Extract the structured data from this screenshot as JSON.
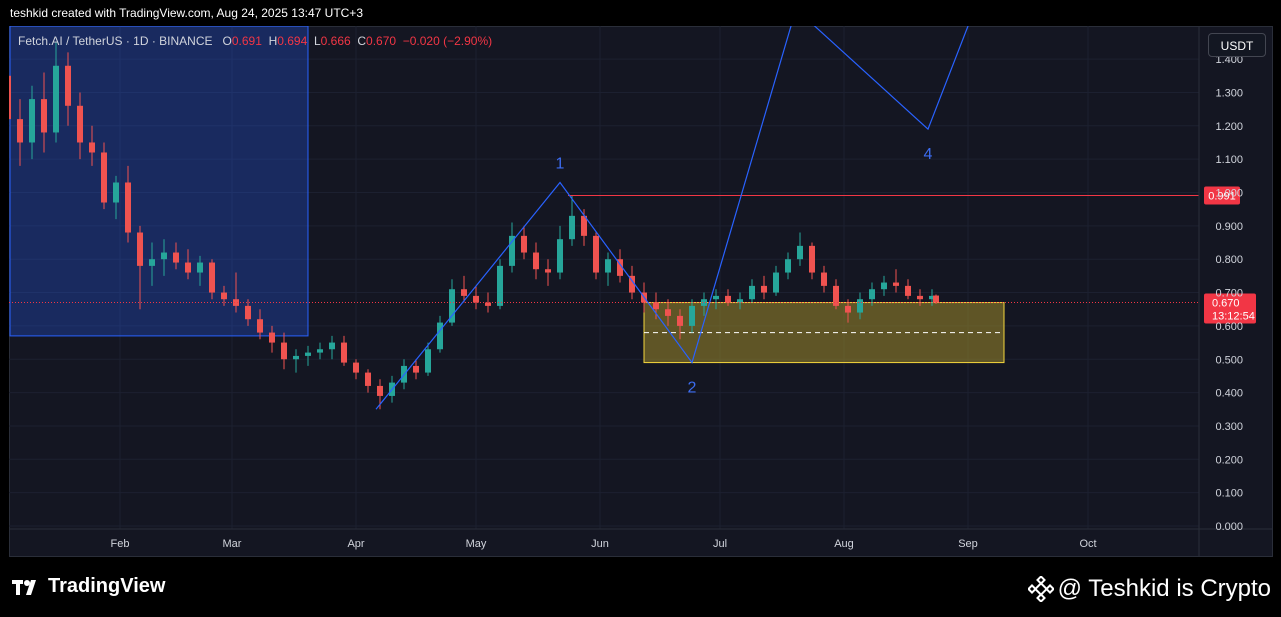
{
  "header": {
    "attribution": "teshkid created with TradingView.com, Aug 24, 2025 13:47 UTC+3"
  },
  "legend": {
    "symbol": "Fetch.AI / TetherUS · 1D · BINANCE",
    "o_label": "O",
    "o_value": "0.691",
    "h_label": "H",
    "h_value": "0.694",
    "l_label": "L",
    "l_value": "0.666",
    "c_label": "C",
    "c_value": "0.670",
    "change": "−0.020 (−2.90%)"
  },
  "currency_button": "USDT",
  "footer": {
    "brand": "TradingView",
    "watermark": "@ Teshkid is Crypto"
  },
  "colors": {
    "up": "#26a69a",
    "down": "#ef5350",
    "wave": "#2962ff",
    "resistance": "#f23645",
    "zone_fill": "#9c8b2a",
    "zone_border": "#f5d63d",
    "box": "#2962ff"
  },
  "chart_data": {
    "type": "candlestick",
    "x_ticks": [
      "Feb",
      "Mar",
      "Apr",
      "May",
      "Jun",
      "Jul",
      "Aug",
      "Sep",
      "Oct"
    ],
    "y_ticks": [
      "0.000",
      "0.100",
      "0.200",
      "0.300",
      "0.400",
      "0.500",
      "0.600",
      "0.700",
      "0.800",
      "0.900",
      "1.000",
      "1.100",
      "1.200",
      "1.300",
      "1.400"
    ],
    "ylim": [
      0,
      1.47
    ],
    "resistance_level": {
      "value": 0.991,
      "label": "0.991"
    },
    "last_price": {
      "value": 0.67,
      "label": "0.670",
      "countdown": "13:12:54"
    },
    "wave_points": [
      {
        "date": "2025-04-06",
        "price": 0.35,
        "label": ""
      },
      {
        "date": "2025-05-22",
        "price": 1.03,
        "label": "1"
      },
      {
        "date": "2025-06-24",
        "price": 0.49,
        "label": "2"
      },
      {
        "date": "2025-07-20",
        "price": 1.55,
        "label": ""
      },
      {
        "date": "2025-08-22",
        "price": 1.19,
        "label": "4"
      },
      {
        "date": "2025-09-02",
        "price": 1.53,
        "label": ""
      }
    ],
    "zones": [
      {
        "type": "box",
        "from": "2025-01-01",
        "to": "2025-03-20",
        "low": 0.57,
        "high": 1.47
      },
      {
        "type": "demand",
        "from": "2025-06-12",
        "to": "2025-09-10",
        "low": 0.49,
        "high": 0.67,
        "mid": 0.58
      }
    ],
    "series": [
      {
        "ohlc": [
          [
            "2025-01-01",
            1.3,
            1.47,
            1.22,
            1.35
          ],
          [
            "2025-01-04",
            1.35,
            1.4,
            1.18,
            1.22
          ],
          [
            "2025-01-07",
            1.22,
            1.28,
            1.08,
            1.15
          ],
          [
            "2025-01-10",
            1.15,
            1.32,
            1.1,
            1.28
          ],
          [
            "2025-01-13",
            1.28,
            1.36,
            1.12,
            1.18
          ],
          [
            "2025-01-16",
            1.18,
            1.45,
            1.15,
            1.38
          ],
          [
            "2025-01-19",
            1.38,
            1.42,
            1.2,
            1.26
          ],
          [
            "2025-01-22",
            1.26,
            1.3,
            1.1,
            1.15
          ],
          [
            "2025-01-25",
            1.15,
            1.2,
            1.08,
            1.12
          ],
          [
            "2025-01-28",
            1.12,
            1.15,
            0.95,
            0.97
          ],
          [
            "2025-01-31",
            0.97,
            1.05,
            0.92,
            1.03
          ],
          [
            "2025-02-03",
            1.03,
            1.08,
            0.85,
            0.88
          ],
          [
            "2025-02-06",
            0.88,
            0.9,
            0.65,
            0.78
          ],
          [
            "2025-02-09",
            0.78,
            0.85,
            0.72,
            0.8
          ],
          [
            "2025-02-12",
            0.8,
            0.86,
            0.75,
            0.82
          ],
          [
            "2025-02-15",
            0.82,
            0.85,
            0.77,
            0.79
          ],
          [
            "2025-02-18",
            0.79,
            0.83,
            0.74,
            0.76
          ],
          [
            "2025-02-21",
            0.76,
            0.81,
            0.72,
            0.79
          ],
          [
            "2025-02-24",
            0.79,
            0.8,
            0.68,
            0.7
          ],
          [
            "2025-02-27",
            0.7,
            0.72,
            0.66,
            0.68
          ],
          [
            "2025-03-02",
            0.68,
            0.76,
            0.64,
            0.66
          ],
          [
            "2025-03-05",
            0.66,
            0.68,
            0.6,
            0.62
          ],
          [
            "2025-03-08",
            0.62,
            0.65,
            0.56,
            0.58
          ],
          [
            "2025-03-11",
            0.58,
            0.6,
            0.52,
            0.55
          ],
          [
            "2025-03-14",
            0.55,
            0.58,
            0.47,
            0.5
          ],
          [
            "2025-03-17",
            0.5,
            0.53,
            0.46,
            0.51
          ],
          [
            "2025-03-20",
            0.51,
            0.54,
            0.48,
            0.52
          ],
          [
            "2025-03-23",
            0.52,
            0.55,
            0.5,
            0.53
          ],
          [
            "2025-03-26",
            0.53,
            0.57,
            0.5,
            0.55
          ],
          [
            "2025-03-29",
            0.55,
            0.57,
            0.48,
            0.49
          ],
          [
            "2025-04-01",
            0.49,
            0.5,
            0.44,
            0.46
          ],
          [
            "2025-04-04",
            0.46,
            0.47,
            0.4,
            0.42
          ],
          [
            "2025-04-07",
            0.42,
            0.44,
            0.35,
            0.39
          ],
          [
            "2025-04-10",
            0.39,
            0.45,
            0.37,
            0.43
          ],
          [
            "2025-04-13",
            0.43,
            0.5,
            0.41,
            0.48
          ],
          [
            "2025-04-16",
            0.48,
            0.5,
            0.44,
            0.46
          ],
          [
            "2025-04-19",
            0.46,
            0.55,
            0.45,
            0.53
          ],
          [
            "2025-04-22",
            0.53,
            0.63,
            0.52,
            0.61
          ],
          [
            "2025-04-25",
            0.61,
            0.74,
            0.6,
            0.71
          ],
          [
            "2025-04-28",
            0.71,
            0.75,
            0.67,
            0.69
          ],
          [
            "2025-05-01",
            0.69,
            0.72,
            0.65,
            0.67
          ],
          [
            "2025-05-04",
            0.67,
            0.7,
            0.64,
            0.66
          ],
          [
            "2025-05-07",
            0.66,
            0.8,
            0.65,
            0.78
          ],
          [
            "2025-05-10",
            0.78,
            0.91,
            0.76,
            0.87
          ],
          [
            "2025-05-13",
            0.87,
            0.9,
            0.8,
            0.82
          ],
          [
            "2025-05-16",
            0.82,
            0.85,
            0.74,
            0.77
          ],
          [
            "2025-05-19",
            0.77,
            0.8,
            0.72,
            0.76
          ],
          [
            "2025-05-22",
            0.76,
            0.9,
            0.74,
            0.86
          ],
          [
            "2025-05-25",
            0.86,
            0.99,
            0.84,
            0.93
          ],
          [
            "2025-05-28",
            0.93,
            0.95,
            0.84,
            0.87
          ],
          [
            "2025-05-31",
            0.87,
            0.88,
            0.74,
            0.76
          ],
          [
            "2025-06-03",
            0.76,
            0.82,
            0.72,
            0.8
          ],
          [
            "2025-06-06",
            0.8,
            0.83,
            0.73,
            0.75
          ],
          [
            "2025-06-09",
            0.75,
            0.78,
            0.68,
            0.7
          ],
          [
            "2025-06-12",
            0.7,
            0.73,
            0.64,
            0.67
          ],
          [
            "2025-06-15",
            0.67,
            0.7,
            0.62,
            0.65
          ],
          [
            "2025-06-18",
            0.65,
            0.68,
            0.6,
            0.63
          ],
          [
            "2025-06-21",
            0.63,
            0.65,
            0.56,
            0.6
          ],
          [
            "2025-06-24",
            0.6,
            0.68,
            0.58,
            0.66
          ],
          [
            "2025-06-27",
            0.66,
            0.7,
            0.63,
            0.68
          ],
          [
            "2025-06-30",
            0.68,
            0.71,
            0.65,
            0.69
          ],
          [
            "2025-07-03",
            0.69,
            0.71,
            0.66,
            0.67
          ],
          [
            "2025-07-06",
            0.67,
            0.7,
            0.65,
            0.68
          ],
          [
            "2025-07-09",
            0.68,
            0.74,
            0.67,
            0.72
          ],
          [
            "2025-07-12",
            0.72,
            0.75,
            0.68,
            0.7
          ],
          [
            "2025-07-15",
            0.7,
            0.78,
            0.69,
            0.76
          ],
          [
            "2025-07-18",
            0.76,
            0.82,
            0.74,
            0.8
          ],
          [
            "2025-07-21",
            0.8,
            0.88,
            0.78,
            0.84
          ],
          [
            "2025-07-24",
            0.84,
            0.85,
            0.74,
            0.76
          ],
          [
            "2025-07-27",
            0.76,
            0.78,
            0.7,
            0.72
          ],
          [
            "2025-07-30",
            0.72,
            0.74,
            0.65,
            0.66
          ],
          [
            "2025-08-02",
            0.66,
            0.68,
            0.61,
            0.64
          ],
          [
            "2025-08-05",
            0.64,
            0.7,
            0.62,
            0.68
          ],
          [
            "2025-08-08",
            0.68,
            0.73,
            0.66,
            0.71
          ],
          [
            "2025-08-11",
            0.71,
            0.75,
            0.69,
            0.73
          ],
          [
            "2025-08-14",
            0.73,
            0.77,
            0.7,
            0.72
          ],
          [
            "2025-08-17",
            0.72,
            0.74,
            0.68,
            0.69
          ],
          [
            "2025-08-20",
            0.69,
            0.71,
            0.66,
            0.68
          ],
          [
            "2025-08-23",
            0.68,
            0.71,
            0.66,
            0.69
          ],
          [
            "2025-08-24",
            0.691,
            0.694,
            0.666,
            0.67
          ]
        ]
      }
    ]
  }
}
